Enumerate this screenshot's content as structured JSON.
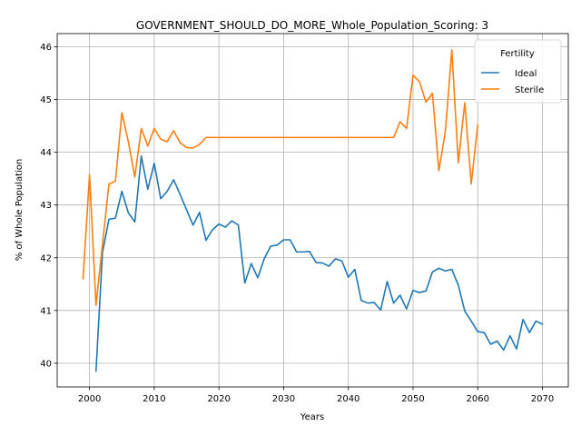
{
  "chart_data": {
    "type": "line",
    "title": "GOVERNMENT_SHOULD_DO_MORE_Whole_Population_Scoring: 3",
    "xlabel": "Years",
    "ylabel": "% of Whole Population",
    "xlim": [
      1995,
      2074
    ],
    "ylim": [
      39.55,
      46.25
    ],
    "xticks": [
      2000,
      2010,
      2020,
      2030,
      2040,
      2050,
      2060,
      2070
    ],
    "yticks": [
      40,
      41,
      42,
      43,
      44,
      45,
      46
    ],
    "grid": true,
    "legend": {
      "title": "Fertility",
      "position": "top-right"
    },
    "series": [
      {
        "name": "Ideal",
        "color": "#1f77b4",
        "x": [
          2001,
          2002,
          2003,
          2004,
          2005,
          2006,
          2007,
          2008,
          2009,
          2010,
          2011,
          2012,
          2013,
          2014,
          2015,
          2016,
          2017,
          2018,
          2019,
          2020,
          2021,
          2022,
          2023,
          2024,
          2025,
          2026,
          2027,
          2028,
          2029,
          2030,
          2031,
          2032,
          2033,
          2034,
          2035,
          2036,
          2037,
          2038,
          2039,
          2040,
          2041,
          2042,
          2043,
          2044,
          2045,
          2046,
          2047,
          2048,
          2049,
          2050,
          2051,
          2052,
          2053,
          2054,
          2055,
          2056,
          2057,
          2058,
          2059,
          2060,
          2061,
          2062,
          2063,
          2064,
          2065,
          2066,
          2067,
          2068,
          2069,
          2070
        ],
        "y": [
          39.85,
          42.1,
          42.73,
          42.75,
          43.26,
          42.85,
          42.68,
          43.93,
          43.3,
          43.79,
          43.12,
          43.26,
          43.48,
          43.2,
          42.91,
          42.62,
          42.86,
          42.33,
          42.53,
          42.64,
          42.58,
          42.7,
          42.62,
          41.52,
          41.89,
          41.62,
          41.98,
          42.22,
          42.24,
          42.34,
          42.34,
          42.11,
          42.11,
          42.12,
          41.91,
          41.9,
          41.84,
          41.98,
          41.94,
          41.63,
          41.78,
          41.19,
          41.14,
          41.15,
          41.01,
          41.55,
          41.14,
          41.29,
          41.03,
          41.38,
          41.34,
          41.37,
          41.73,
          41.8,
          41.75,
          41.78,
          41.48,
          40.99,
          40.8,
          40.6,
          40.58,
          40.36,
          40.42,
          40.25,
          40.52,
          40.27,
          40.83,
          40.58,
          40.8,
          40.74
        ]
      },
      {
        "name": "Sterile",
        "color": "#ff7f0e",
        "x": [
          1999,
          2000,
          2001,
          2002,
          2003,
          2004,
          2005,
          2006,
          2007,
          2008,
          2009,
          2010,
          2011,
          2012,
          2013,
          2014,
          2015,
          2016,
          2017,
          2018,
          2019,
          2020,
          2021,
          2022,
          2023,
          2024,
          2025,
          2026,
          2027,
          2028,
          2029,
          2030,
          2031,
          2032,
          2033,
          2034,
          2035,
          2036,
          2037,
          2038,
          2039,
          2040,
          2041,
          2042,
          2043,
          2044,
          2045,
          2046,
          2047,
          2048,
          2049,
          2050,
          2051,
          2052,
          2053,
          2054,
          2055,
          2056,
          2057,
          2058,
          2059,
          2060
        ],
        "y": [
          41.6,
          43.57,
          41.1,
          42.25,
          43.4,
          43.45,
          44.75,
          44.2,
          43.53,
          44.45,
          44.12,
          44.45,
          44.25,
          44.2,
          44.41,
          44.18,
          44.09,
          44.08,
          44.15,
          44.28,
          44.28,
          44.28,
          44.28,
          44.28,
          44.28,
          44.28,
          44.28,
          44.28,
          44.28,
          44.28,
          44.28,
          44.28,
          44.28,
          44.28,
          44.28,
          44.28,
          44.28,
          44.28,
          44.28,
          44.28,
          44.28,
          44.28,
          44.28,
          44.28,
          44.28,
          44.28,
          44.28,
          44.28,
          44.28,
          44.58,
          44.45,
          45.46,
          45.34,
          44.95,
          45.12,
          43.65,
          44.4,
          45.94,
          43.8,
          44.94,
          43.4,
          44.52
        ]
      }
    ]
  }
}
